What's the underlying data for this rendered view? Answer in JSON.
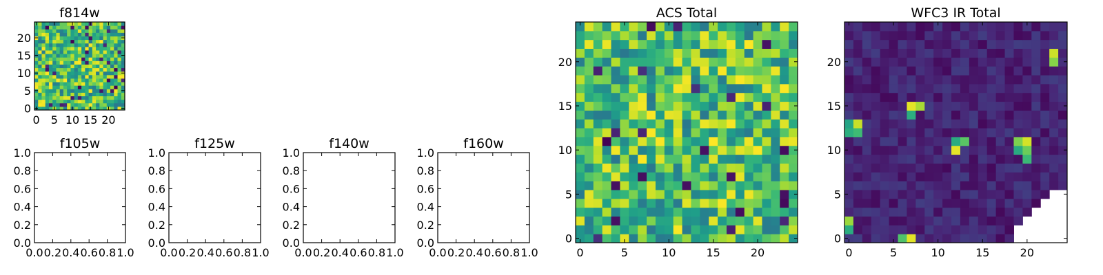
{
  "chart_data": [
    {
      "type": "heatmap",
      "title": "f814w",
      "grid_shape": [
        25,
        25
      ],
      "colormap": "viridis",
      "xticks": [
        "0",
        "5",
        "10",
        "15",
        "20"
      ],
      "yticks": [
        "0",
        "5",
        "10",
        "15",
        "20"
      ],
      "xlim": [
        -0.5,
        24.5
      ],
      "ylim": [
        -0.5,
        24.5
      ],
      "pattern": "noise-high"
    },
    {
      "type": "empty",
      "title": "f105w",
      "xticks": [
        "0.0",
        "0.2",
        "0.4",
        "0.6",
        "0.8",
        "1.0"
      ],
      "yticks": [
        "0.0",
        "0.2",
        "0.4",
        "0.6",
        "0.8",
        "1.0"
      ],
      "xlim": [
        0,
        1
      ],
      "ylim": [
        0,
        1
      ]
    },
    {
      "type": "empty",
      "title": "f125w",
      "xticks": [
        "0.0",
        "0.2",
        "0.4",
        "0.6",
        "0.8",
        "1.0"
      ],
      "yticks": [
        "0.0",
        "0.2",
        "0.4",
        "0.6",
        "0.8",
        "1.0"
      ],
      "xlim": [
        0,
        1
      ],
      "ylim": [
        0,
        1
      ]
    },
    {
      "type": "empty",
      "title": "f140w",
      "xticks": [
        "0.0",
        "0.2",
        "0.4",
        "0.6",
        "0.8",
        "1.0"
      ],
      "yticks": [
        "0.0",
        "0.2",
        "0.4",
        "0.6",
        "0.8",
        "1.0"
      ],
      "xlim": [
        0,
        1
      ],
      "ylim": [
        0,
        1
      ]
    },
    {
      "type": "empty",
      "title": "f160w",
      "xticks": [
        "0.0",
        "0.2",
        "0.4",
        "0.6",
        "0.8",
        "1.0"
      ],
      "yticks": [
        "0.0",
        "0.2",
        "0.4",
        "0.6",
        "0.8",
        "1.0"
      ],
      "xlim": [
        0,
        1
      ],
      "ylim": [
        0,
        1
      ]
    },
    {
      "type": "heatmap",
      "title": "ACS Total",
      "grid_shape": [
        25,
        25
      ],
      "colormap": "viridis",
      "xticks": [
        "0",
        "5",
        "10",
        "15",
        "20"
      ],
      "yticks": [
        "0",
        "5",
        "10",
        "15",
        "20"
      ],
      "xlim": [
        -0.5,
        24.5
      ],
      "ylim": [
        -0.5,
        24.5
      ],
      "pattern": "noise-high"
    },
    {
      "type": "heatmap",
      "title": "WFC3 IR Total",
      "grid_shape": [
        25,
        25
      ],
      "colormap": "viridis",
      "xticks": [
        "0",
        "5",
        "10",
        "15",
        "20"
      ],
      "yticks": [
        "0",
        "5",
        "10",
        "15",
        "20"
      ],
      "xlim": [
        -0.5,
        24.5
      ],
      "ylim": [
        -0.5,
        24.5
      ],
      "pattern": "low-with-sources",
      "hot_cells": [
        [
          0,
          12
        ],
        [
          0,
          13
        ],
        [
          1,
          12
        ],
        [
          1,
          13
        ],
        [
          7,
          14
        ],
        [
          7,
          15
        ],
        [
          8,
          15
        ],
        [
          12,
          10
        ],
        [
          12,
          11
        ],
        [
          13,
          11
        ],
        [
          19,
          10
        ],
        [
          19,
          11
        ],
        [
          20,
          10
        ],
        [
          20,
          11
        ],
        [
          20,
          9
        ],
        [
          23,
          20
        ],
        [
          23,
          21
        ],
        [
          0,
          1
        ],
        [
          0,
          2
        ],
        [
          6,
          0
        ],
        [
          7,
          0
        ]
      ],
      "masked_corner": "bottom-right"
    }
  ]
}
